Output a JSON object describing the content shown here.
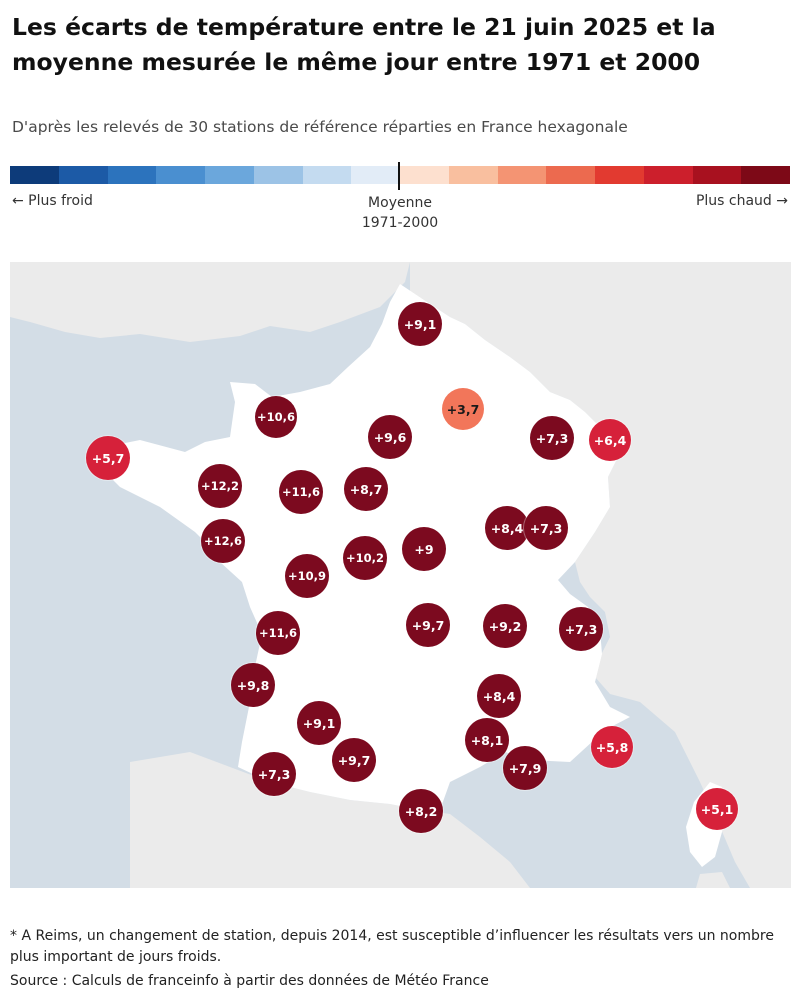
{
  "title": "Les écarts de température entre le 21 juin 2025 et la moyenne mesurée le même jour entre 1971 et 2000",
  "subtitle": "D'après les relevés de 30 stations de référence réparties en France hexagonale",
  "legend": {
    "cold_label": "← Plus froid",
    "hot_label": "Plus chaud →",
    "mid_label_line1": "Moyenne",
    "mid_label_line2": "1971-2000",
    "scale_colors": [
      "#0d3b7a",
      "#1c5aa6",
      "#2c73bd",
      "#4a8fd0",
      "#6ba7dc",
      "#9cc3e6",
      "#c4dbf0",
      "#e2ecf7",
      "#fde0cf",
      "#f9bf9f",
      "#f49473",
      "#ec6a4f",
      "#e23a30",
      "#cc1f2c",
      "#a8111f",
      "#7d0917"
    ]
  },
  "colors": {
    "very_hot": "#7c0a1f",
    "hot": "#d6213a",
    "warm": "#f2765a",
    "land": "#ffffff",
    "neighbors": "#ebebeb",
    "sea": "#d3dde6"
  },
  "stations": [
    {
      "value": "+9,1",
      "level": "very_hot"
    },
    {
      "value": "+3,7",
      "level": "warm"
    },
    {
      "value": "+10,6",
      "level": "very_hot"
    },
    {
      "value": "+9,6",
      "level": "very_hot"
    },
    {
      "value": "+7,3",
      "level": "very_hot"
    },
    {
      "value": "+6,4",
      "level": "hot"
    },
    {
      "value": "+5,7",
      "level": "hot"
    },
    {
      "value": "+12,2",
      "level": "very_hot"
    },
    {
      "value": "+11,6",
      "level": "very_hot"
    },
    {
      "value": "+8,7",
      "level": "very_hot"
    },
    {
      "value": "+8,4",
      "level": "very_hot"
    },
    {
      "value": "+7,3",
      "level": "very_hot"
    },
    {
      "value": "+12,6",
      "level": "very_hot"
    },
    {
      "value": "+10,2",
      "level": "very_hot"
    },
    {
      "value": "+9",
      "level": "very_hot"
    },
    {
      "value": "+10,9",
      "level": "very_hot"
    },
    {
      "value": "+11,6",
      "level": "very_hot"
    },
    {
      "value": "+9,7",
      "level": "very_hot"
    },
    {
      "value": "+9,2",
      "level": "very_hot"
    },
    {
      "value": "+7,3",
      "level": "very_hot"
    },
    {
      "value": "+9,8",
      "level": "very_hot"
    },
    {
      "value": "+8,4",
      "level": "very_hot"
    },
    {
      "value": "+9,1",
      "level": "very_hot"
    },
    {
      "value": "+8,1",
      "level": "very_hot"
    },
    {
      "value": "+5,8",
      "level": "hot"
    },
    {
      "value": "+9,7",
      "level": "very_hot"
    },
    {
      "value": "+7,3",
      "level": "very_hot"
    },
    {
      "value": "+7,9",
      "level": "very_hot"
    },
    {
      "value": "+8,2",
      "level": "very_hot"
    },
    {
      "value": "+5,1",
      "level": "hot"
    }
  ],
  "footnote": "* A Reims, un changement de station, depuis 2014, est susceptible d’influencer les résultats vers un nombre plus important de jours froids.",
  "source": "Source : Calculs de franceinfo à partir des données de Météo France"
}
